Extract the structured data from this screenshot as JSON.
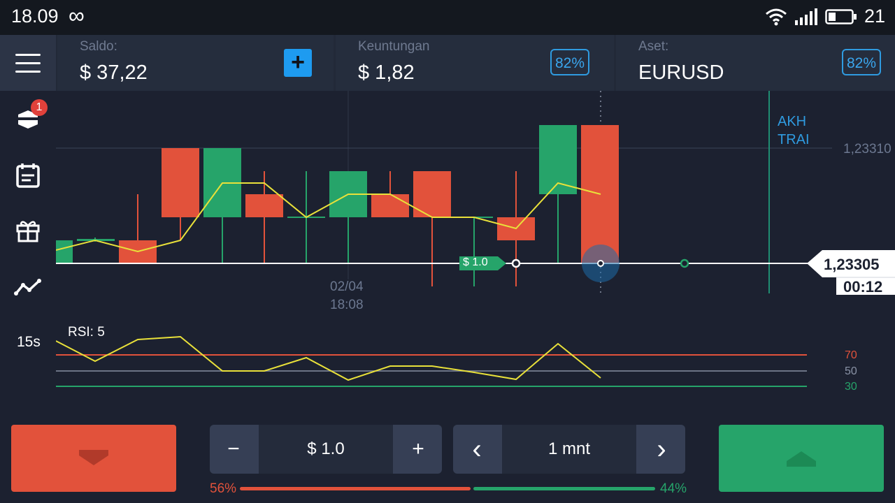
{
  "status_bar": {
    "time": "18.09",
    "infinity": "∞",
    "battery": "21"
  },
  "header": {
    "balance_label": "Saldo:",
    "balance_value": "$ 37,22",
    "profit_label": "Keuntungan",
    "profit_value": "$ 1,82",
    "profit_pct": "82%",
    "asset_label": "Aset:",
    "asset_value": "EURUSD",
    "asset_pct": "82%"
  },
  "sidebar": {
    "badge_count": "1",
    "interval": "15s"
  },
  "chart": {
    "date": "02/04",
    "time": "18:08",
    "price_tick": "1,23310",
    "current_price": "1,23305",
    "countdown": "00:12",
    "expiry_label_1": "AKH",
    "expiry_label_2": "TRAI",
    "trade_tag": "$ 1.0",
    "rsi_label": "RSI: 5",
    "rsi_levels": [
      "70",
      "50",
      "30"
    ],
    "colors": {
      "up": "#26a46a",
      "down": "#e2523b",
      "accent": "#2f9be0",
      "ma": "#e9e13a"
    }
  },
  "controls": {
    "amount_minus": "−",
    "amount_value": "$ 1.0",
    "amount_plus": "+",
    "time_prev": "‹",
    "time_value": "1 mnt",
    "time_next": "›",
    "sell_pct": "56%",
    "buy_pct": "44%"
  },
  "sentiment": {
    "sell": 0.56,
    "buy": 0.44
  }
}
